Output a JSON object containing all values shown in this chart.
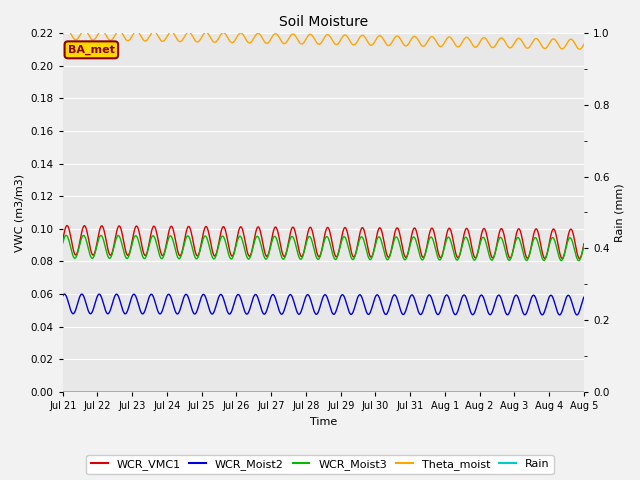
{
  "title": "Soil Moisture",
  "xlabel": "Time",
  "ylabel_left": "VWC (m3/m3)",
  "ylabel_right": "Rain (mm)",
  "ylim_left": [
    0.0,
    0.22
  ],
  "ylim_right": [
    0.0,
    1.0
  ],
  "yticks_left": [
    0.0,
    0.02,
    0.04,
    0.06,
    0.08,
    0.1,
    0.12,
    0.14,
    0.16,
    0.18,
    0.2,
    0.22
  ],
  "yticks_right": [
    0.0,
    0.2,
    0.4,
    0.6,
    0.8,
    1.0
  ],
  "xtick_labels": [
    "Jul 21",
    "Jul 22",
    "Jul 23",
    "Jul 24",
    "Jul 25",
    "Jul 26",
    "Jul 27",
    "Jul 28",
    "Jul 29",
    "Jul 30",
    "Jul 31",
    "Aug 1",
    "Aug 2",
    "Aug 3",
    "Aug 4",
    "Aug 5"
  ],
  "annotation_text": "BA_met",
  "annotation_color": "#8B0000",
  "annotation_bg": "#FFD700",
  "series": {
    "WCR_VMC1": {
      "color": "#DD0000",
      "base": 0.093,
      "amp": 0.009,
      "period": 0.5,
      "phase": 0.0,
      "trend": -0.00015
    },
    "WCR_Moist2": {
      "color": "#0000DD",
      "base": 0.054,
      "amp": 0.006,
      "period": 0.5,
      "phase": 0.15,
      "trend": -5e-05
    },
    "WCR_Moist3": {
      "color": "#00BB00",
      "base": 0.089,
      "amp": 0.007,
      "period": 0.5,
      "phase": 0.05,
      "trend": -0.0001
    },
    "Theta_moist": {
      "color": "#FFA500",
      "base": 0.219,
      "amp": 0.003,
      "period": 0.5,
      "phase": 0.0,
      "trend": -0.0004
    },
    "Rain": {
      "color": "#00CCCC",
      "base": 0.0,
      "amp": 0.0,
      "period": 1.0,
      "phase": 0.0,
      "trend": 0.0
    }
  },
  "fig_bg": "#F2F2F2",
  "ax_bg": "#E8E8E8",
  "legend_items": [
    "WCR_VMC1",
    "WCR_Moist2",
    "WCR_Moist3",
    "Theta_moist",
    "Rain"
  ],
  "legend_colors": [
    "#DD0000",
    "#0000DD",
    "#00BB00",
    "#FFA500",
    "#00CCCC"
  ]
}
